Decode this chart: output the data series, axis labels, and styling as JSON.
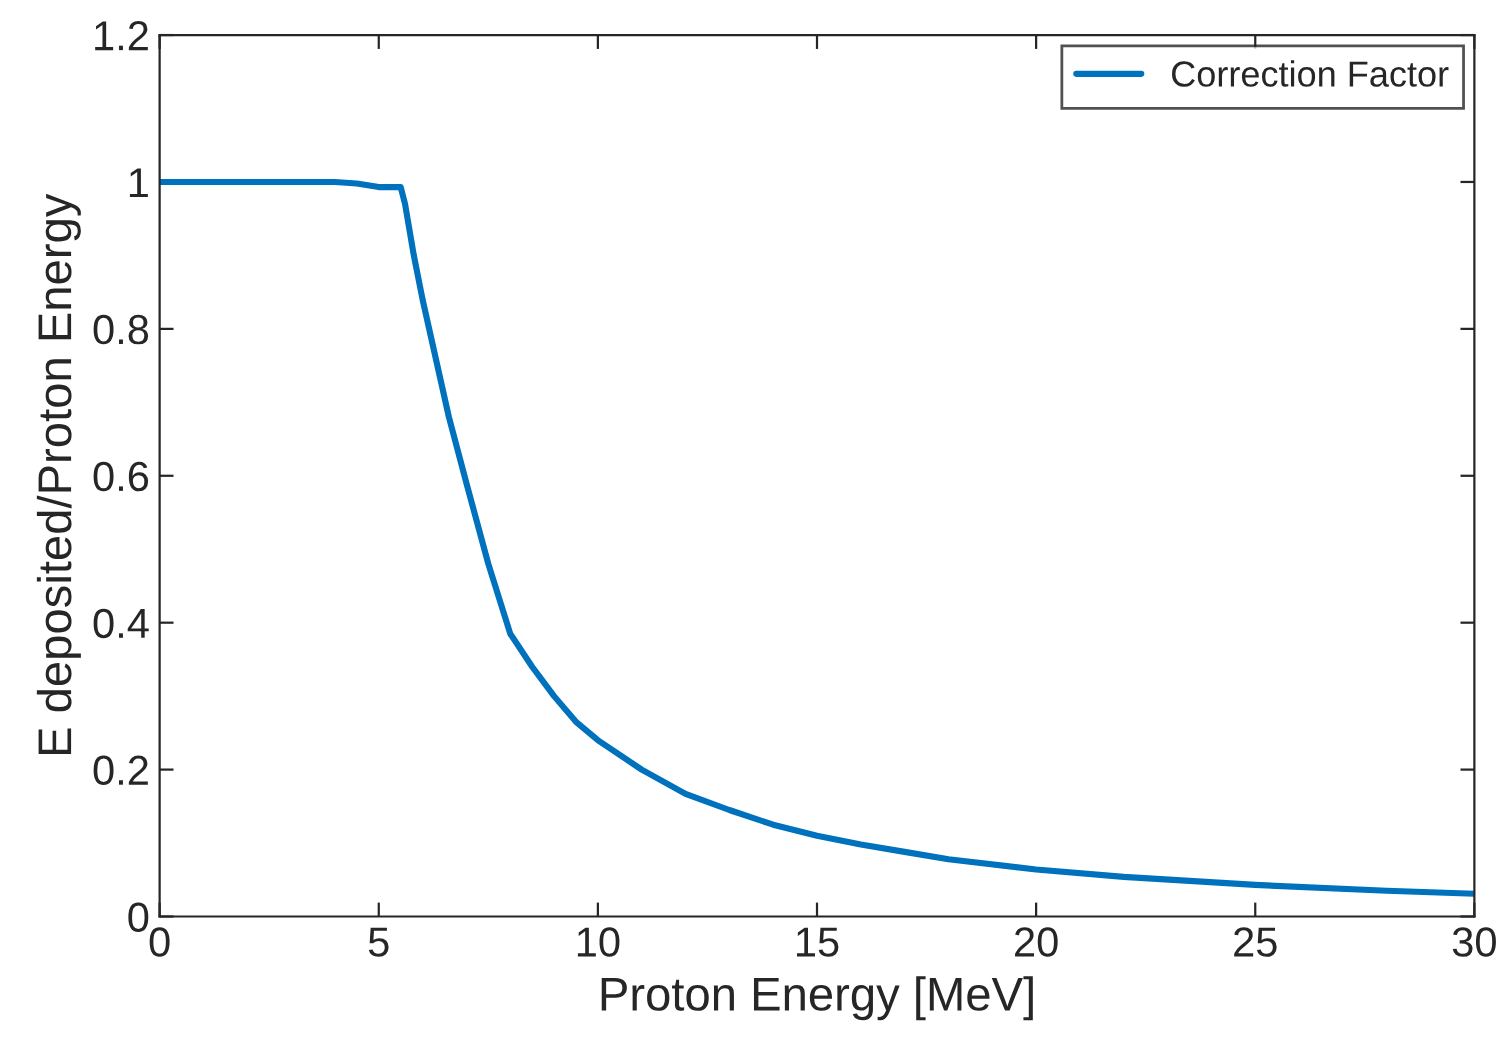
{
  "chart_data": {
    "type": "line",
    "xlabel": "Proton Energy [MeV]",
    "ylabel": "E deposited/Proton Energy",
    "xlim": [
      0,
      30
    ],
    "xticks": [
      0,
      5,
      10,
      15,
      20,
      25,
      30
    ],
    "ylim": [
      0,
      1.2
    ],
    "yticks": [
      0,
      0.2,
      0.4,
      0.6,
      0.8,
      1,
      1.2
    ],
    "grid": false,
    "legend": "top right",
    "line_style": "solid",
    "series": [
      {
        "name": "Correction Factor",
        "color": "#0072bd",
        "x": [
          0,
          2,
          4,
          4.5,
          5,
          5.5,
          5.6,
          5.8,
          6,
          6.3,
          6.6,
          7,
          7.5,
          8,
          8.5,
          9,
          9.5,
          10,
          11,
          12,
          13,
          14,
          15,
          16,
          17,
          18,
          20,
          22,
          25,
          28,
          30
        ],
        "values": [
          1,
          1,
          1,
          0.998,
          0.993,
          0.993,
          0.97,
          0.9,
          0.84,
          0.76,
          0.68,
          0.59,
          0.48,
          0.385,
          0.34,
          0.3,
          0.265,
          0.24,
          0.2,
          0.167,
          0.145,
          0.125,
          0.11,
          0.098,
          0.088,
          0.078,
          0.064,
          0.054,
          0.043,
          0.035,
          0.031
        ]
      }
    ]
  }
}
